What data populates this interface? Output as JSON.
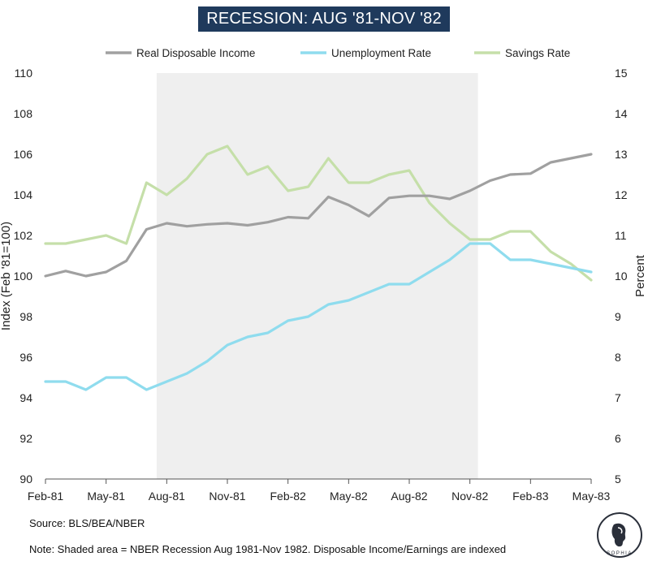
{
  "chart_data": {
    "type": "line",
    "title": "RECESSION: AUG '81-NOV '82",
    "x": [
      "Feb-81",
      "Mar-81",
      "Apr-81",
      "May-81",
      "Jun-81",
      "Jul-81",
      "Aug-81",
      "Sep-81",
      "Oct-81",
      "Nov-81",
      "Dec-81",
      "Jan-82",
      "Feb-82",
      "Mar-82",
      "Apr-82",
      "May-82",
      "Jun-82",
      "Jul-82",
      "Aug-82",
      "Sep-82",
      "Oct-82",
      "Nov-82",
      "Dec-82",
      "Jan-83",
      "Feb-83",
      "Mar-83",
      "Apr-83",
      "May-83"
    ],
    "x_tick_labels": [
      "Feb-81",
      "May-81",
      "Aug-81",
      "Nov-81",
      "Feb-82",
      "May-82",
      "Aug-82",
      "Nov-82",
      "Feb-83",
      "May-83"
    ],
    "ylabel_left": "Index (Feb '81=100)",
    "ylabel_right": "Percent",
    "ylim_left": [
      90,
      110
    ],
    "ylim_right": [
      5,
      15
    ],
    "y_ticks_left": [
      90,
      92,
      94,
      96,
      98,
      100,
      102,
      104,
      106,
      108,
      110
    ],
    "y_ticks_right": [
      5,
      6,
      7,
      8,
      9,
      10,
      11,
      12,
      13,
      14,
      15
    ],
    "recession_shading": {
      "start": "Aug-81",
      "end": "Nov-82"
    },
    "legend_position": "top",
    "series": [
      {
        "name": "Real Disposable Income",
        "axis": "left",
        "color": "#a0a0a0",
        "values": [
          100.0,
          100.25,
          100.0,
          100.2,
          100.75,
          102.3,
          102.6,
          102.45,
          102.55,
          102.6,
          102.5,
          102.65,
          102.9,
          102.85,
          103.9,
          103.5,
          102.95,
          103.85,
          103.95,
          103.95,
          103.8,
          104.2,
          104.7,
          105.0,
          105.05,
          105.6,
          105.8,
          106.0
        ]
      },
      {
        "name": "Unemployment Rate",
        "axis": "right",
        "color": "#8fdcee",
        "values": [
          7.4,
          7.4,
          7.2,
          7.5,
          7.5,
          7.2,
          7.4,
          7.6,
          7.9,
          8.3,
          8.5,
          8.6,
          8.9,
          9.0,
          9.3,
          9.4,
          9.6,
          9.8,
          9.8,
          10.1,
          10.4,
          10.8,
          10.8,
          10.4,
          10.4,
          10.3,
          10.2,
          10.1
        ]
      },
      {
        "name": "Savings Rate",
        "axis": "right",
        "color": "#c5dfa9",
        "values": [
          10.8,
          10.8,
          10.9,
          11.0,
          10.8,
          12.3,
          12.0,
          12.4,
          13.0,
          13.2,
          12.5,
          12.7,
          12.1,
          12.2,
          12.9,
          12.3,
          12.3,
          12.5,
          12.6,
          11.8,
          11.3,
          10.9,
          10.9,
          11.1,
          11.1,
          10.6,
          10.3,
          9.9
        ]
      }
    ]
  },
  "footer": {
    "source": "Source: BLS/BEA/NBER",
    "note": "Note: Shaded area = NBER Recession Aug 1981-Nov 1982. Disposable Income/Earnings are indexed",
    "logo_text": "SOPHIA"
  }
}
